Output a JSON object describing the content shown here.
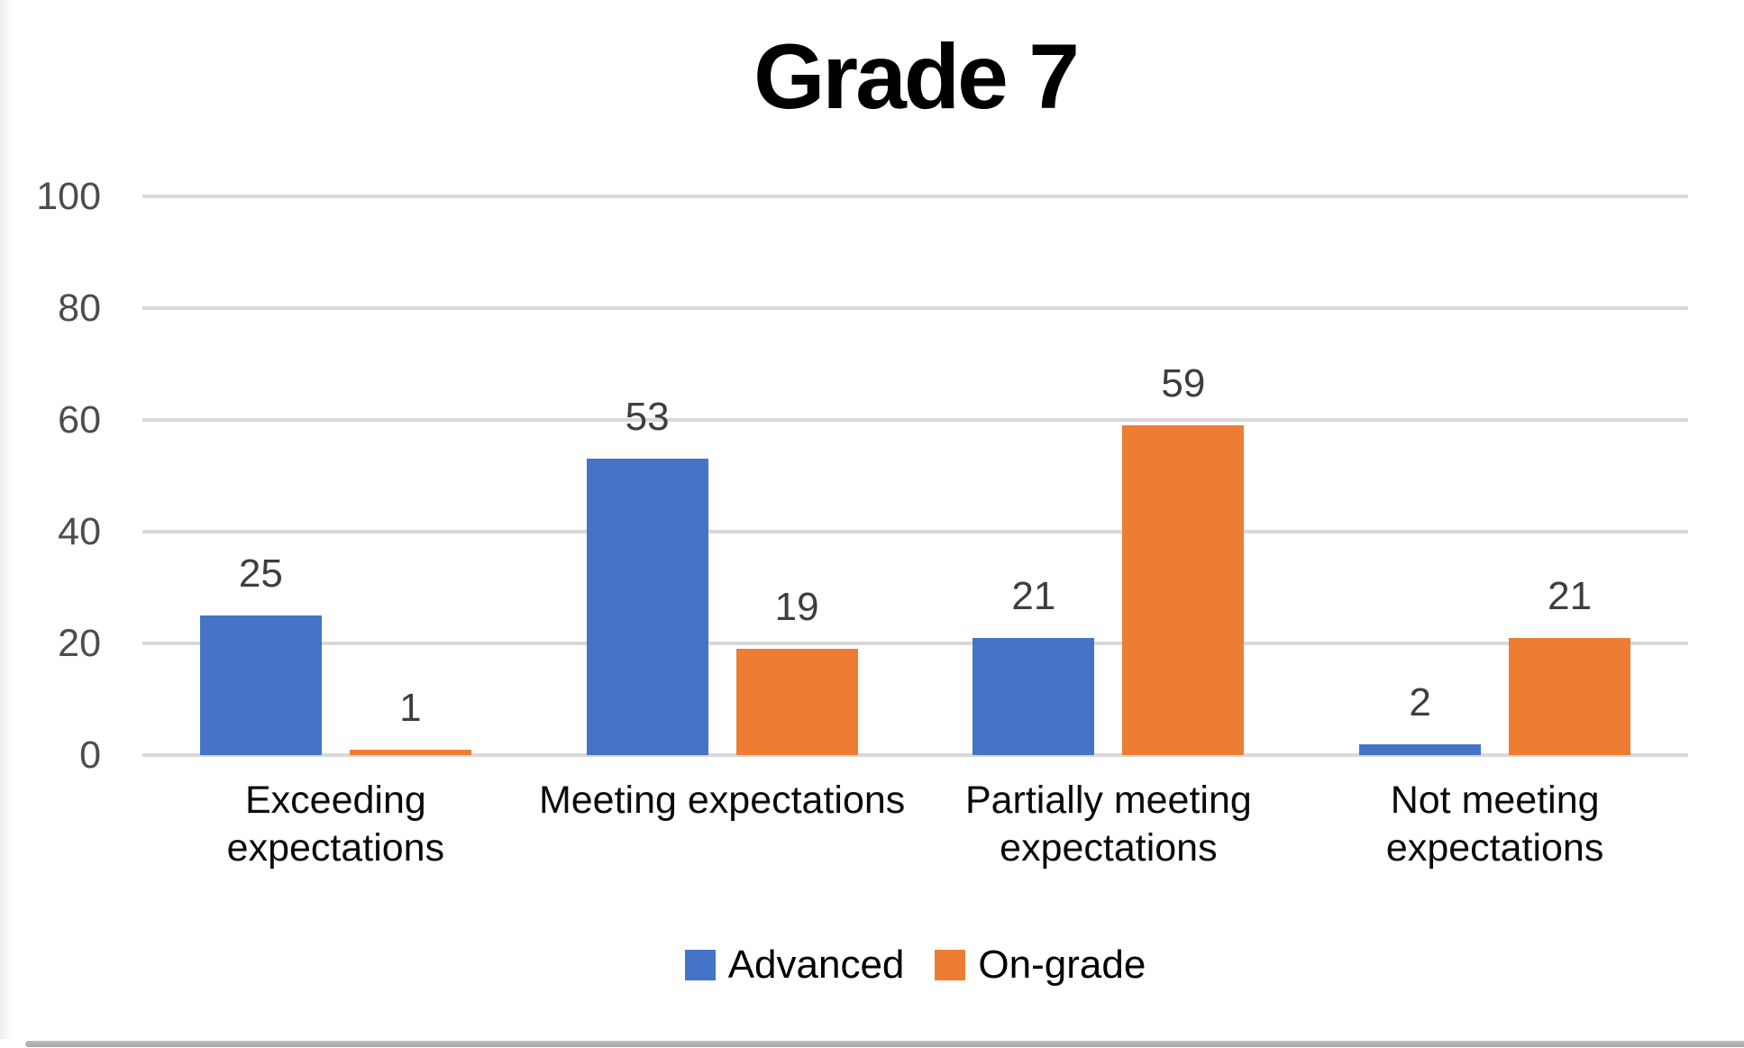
{
  "title": "Grade 7",
  "chart_data": {
    "type": "bar",
    "title": "Grade 7",
    "categories": [
      "Exceeding expectations",
      "Meeting expectations",
      "Partially meeting expectations",
      "Not meeting expectations"
    ],
    "series": [
      {
        "name": "Advanced",
        "color": "#4573C8",
        "values": [
          25,
          53,
          21,
          2
        ]
      },
      {
        "name": "On-grade",
        "color": "#ED7D33",
        "values": [
          1,
          19,
          59,
          21
        ]
      }
    ],
    "xlabel": "",
    "ylabel": "",
    "ylim": [
      0,
      100
    ],
    "yticks": [
      0,
      20,
      40,
      60,
      80,
      100
    ],
    "grid": true,
    "data_labels": true,
    "legend_position": "bottom"
  },
  "legend": {
    "items": [
      {
        "label": "Advanced",
        "color": "#4573C8"
      },
      {
        "label": "On-grade",
        "color": "#ED7D33"
      }
    ]
  },
  "colors": {
    "advanced": "#4573C8",
    "on_grade": "#ED7D33",
    "gridline": "#d9d9d9",
    "tick_label": "#4c4c4c",
    "data_label": "#3e3e3e",
    "category_label": "#0a0a0a",
    "title": "#000000"
  }
}
